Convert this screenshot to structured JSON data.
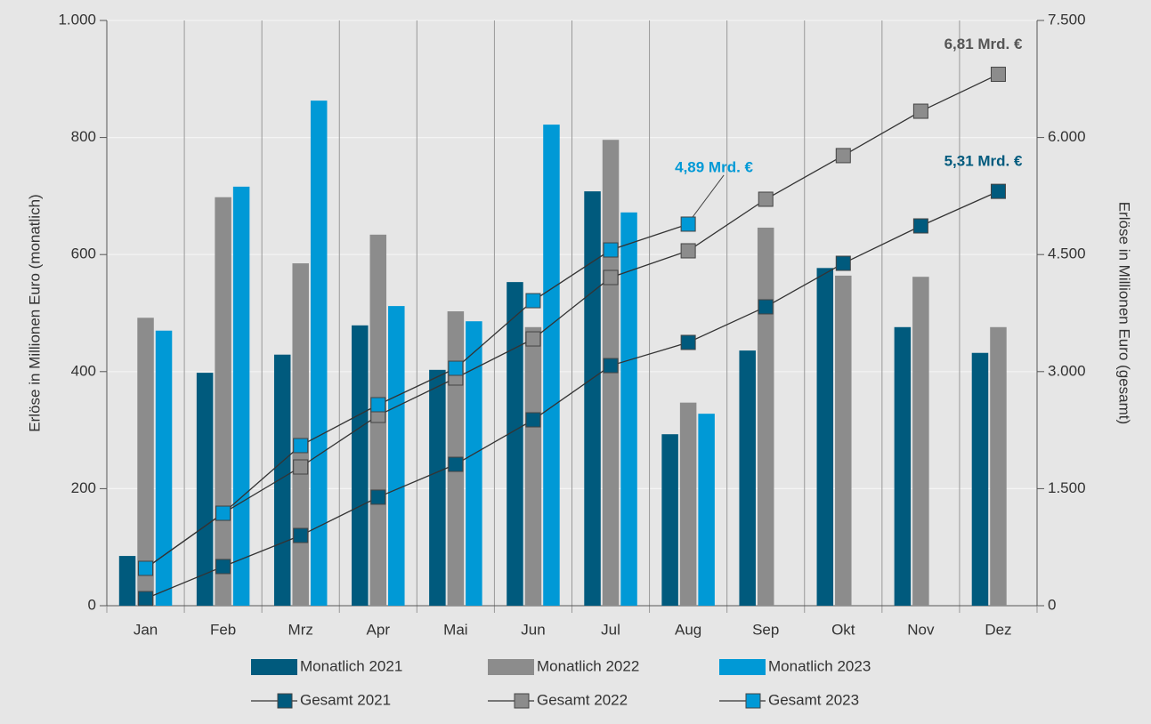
{
  "chart_data": {
    "type": "bar",
    "categories": [
      "Jan",
      "Feb",
      "Mrz",
      "Apr",
      "Mai",
      "Jun",
      "Jul",
      "Aug",
      "Sep",
      "Okt",
      "Nov",
      "Dez"
    ],
    "y_label": "Erlöse in Millionen Euro (monatlich)",
    "y2_label": "Erlöse in Millionen Euro (gesamt)",
    "ylim": [
      0,
      1000
    ],
    "yticks": [
      0,
      200,
      400,
      600,
      800,
      {
        "value": 1000,
        "label": "1.000"
      }
    ],
    "y2lim": [
      0,
      7500
    ],
    "y2ticks": [
      0,
      {
        "value": 1500,
        "label": "1.500"
      },
      {
        "value": 3000,
        "label": "3.000"
      },
      {
        "value": 4500,
        "label": "4.500"
      },
      {
        "value": 6000,
        "label": "6.000"
      },
      {
        "value": 7500,
        "label": "7.500"
      }
    ],
    "grid": true,
    "series": [
      {
        "name": "Monatlich 2021",
        "type": "bar",
        "color": "#005a7d",
        "values": [
          85,
          398,
          429,
          479,
          403,
          553,
          708,
          293,
          436,
          577,
          476,
          432
        ]
      },
      {
        "name": "Monatlich 2022",
        "type": "bar",
        "color": "#8c8c8c",
        "values": [
          492,
          698,
          585,
          634,
          503,
          476,
          796,
          347,
          646,
          564,
          562,
          476
        ]
      },
      {
        "name": "Monatlich 2023",
        "type": "bar",
        "color": "#0099d6",
        "values": [
          470,
          716,
          863,
          512,
          486,
          822,
          672,
          328,
          null,
          null,
          null,
          null
        ]
      },
      {
        "name": "Gesamt 2021",
        "type": "line",
        "axis": "y2",
        "color": "#005a7d",
        "values": [
          91,
          502,
          900,
          1391,
          1812,
          2382,
          3077,
          3374,
          3830,
          4388,
          4867,
          5310
        ],
        "value_labels": [
          null,
          null,
          null,
          null,
          null,
          null,
          null,
          null,
          null,
          null,
          null,
          "5,31 Mrd. €"
        ]
      },
      {
        "name": "Gesamt 2022",
        "type": "line",
        "axis": "y2",
        "color": "#8c8c8c",
        "label_color": "#555555",
        "values": [
          479,
          1185,
          1778,
          2439,
          2918,
          3419,
          4206,
          4548,
          5209,
          5768,
          6337,
          6810
        ],
        "value_labels": [
          null,
          null,
          null,
          null,
          null,
          null,
          null,
          null,
          null,
          null,
          null,
          "6,81 Mrd. €"
        ]
      },
      {
        "name": "Gesamt 2023",
        "type": "line",
        "axis": "y2",
        "color": "#0099d6",
        "values": [
          479,
          1185,
          2052,
          2576,
          3043,
          3909,
          4559,
          4890,
          null,
          null,
          null,
          null
        ],
        "value_labels": [
          null,
          null,
          null,
          null,
          null,
          null,
          null,
          "4,89 Mrd. €",
          null,
          null,
          null,
          null
        ]
      }
    ]
  }
}
